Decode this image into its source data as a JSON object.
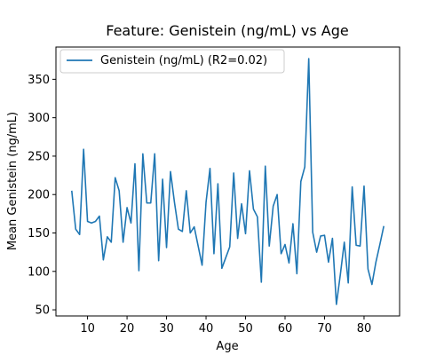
{
  "chart_data": {
    "type": "line",
    "title": "Feature: Genistein (ng/mL) vs Age",
    "xlabel": "Age",
    "ylabel": "Mean Genistein (ng/mL)",
    "xlim": [
      2,
      89
    ],
    "ylim": [
      42,
      392
    ],
    "xticks": [
      10,
      20,
      30,
      40,
      50,
      60,
      70,
      80
    ],
    "yticks": [
      50,
      100,
      150,
      200,
      250,
      300,
      350
    ],
    "grid": false,
    "legend_position": "top-left",
    "series": [
      {
        "name": "Genistein (ng/mL) (R2=0.02)",
        "color": "#1f77b4",
        "x": [
          6,
          7,
          8,
          9,
          10,
          11,
          12,
          13,
          14,
          15,
          16,
          17,
          18,
          19,
          20,
          21,
          22,
          23,
          24,
          25,
          26,
          27,
          28,
          29,
          30,
          31,
          32,
          33,
          34,
          35,
          36,
          37,
          38,
          39,
          40,
          41,
          42,
          43,
          44,
          45,
          46,
          47,
          48,
          49,
          50,
          51,
          52,
          53,
          54,
          55,
          56,
          57,
          58,
          59,
          60,
          61,
          62,
          63,
          64,
          65,
          66,
          67,
          68,
          69,
          70,
          71,
          72,
          73,
          74,
          75,
          76,
          77,
          78,
          79,
          80,
          81,
          82,
          83,
          84,
          85
        ],
        "y": [
          205,
          155,
          148,
          259,
          165,
          163,
          165,
          172,
          115,
          145,
          138,
          222,
          205,
          138,
          183,
          163,
          240,
          101,
          253,
          189,
          189,
          253,
          114,
          220,
          131,
          230,
          190,
          155,
          152,
          205,
          150,
          158,
          133,
          108,
          190,
          234,
          123,
          214,
          104,
          118,
          132,
          228,
          143,
          188,
          149,
          231,
          181,
          171,
          86,
          237,
          133,
          185,
          200,
          123,
          135,
          111,
          162,
          97,
          217,
          236,
          377,
          151,
          125,
          146,
          147,
          112,
          143,
          57,
          96,
          138,
          85,
          210,
          134,
          133,
          211,
          103,
          83,
          112,
          135,
          159
        ]
      }
    ]
  }
}
